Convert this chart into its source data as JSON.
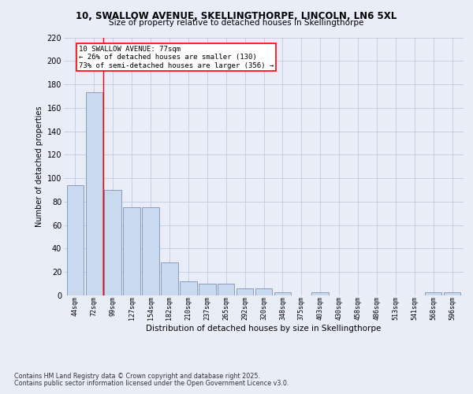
{
  "title1": "10, SWALLOW AVENUE, SKELLINGTHORPE, LINCOLN, LN6 5XL",
  "title2": "Size of property relative to detached houses in Skellingthorpe",
  "xlabel": "Distribution of detached houses by size in Skellingthorpe",
  "ylabel": "Number of detached properties",
  "categories": [
    "44sqm",
    "72sqm",
    "99sqm",
    "127sqm",
    "154sqm",
    "182sqm",
    "210sqm",
    "237sqm",
    "265sqm",
    "292sqm",
    "320sqm",
    "348sqm",
    "375sqm",
    "403sqm",
    "430sqm",
    "458sqm",
    "486sqm",
    "513sqm",
    "541sqm",
    "568sqm",
    "596sqm"
  ],
  "values": [
    94,
    173,
    90,
    75,
    75,
    28,
    12,
    10,
    10,
    6,
    6,
    3,
    0,
    3,
    0,
    0,
    0,
    0,
    0,
    3,
    3
  ],
  "bar_color": "#c9d9f0",
  "bar_edge_color": "#8090b0",
  "annotation_text": "10 SWALLOW AVENUE: 77sqm\n← 26% of detached houses are smaller (130)\n73% of semi-detached houses are larger (356) →",
  "ylim": [
    0,
    220
  ],
  "yticks": [
    0,
    20,
    40,
    60,
    80,
    100,
    120,
    140,
    160,
    180,
    200,
    220
  ],
  "footer1": "Contains HM Land Registry data © Crown copyright and database right 2025.",
  "footer2": "Contains public sector information licensed under the Open Government Licence v3.0.",
  "bg_color": "#e8edf8"
}
